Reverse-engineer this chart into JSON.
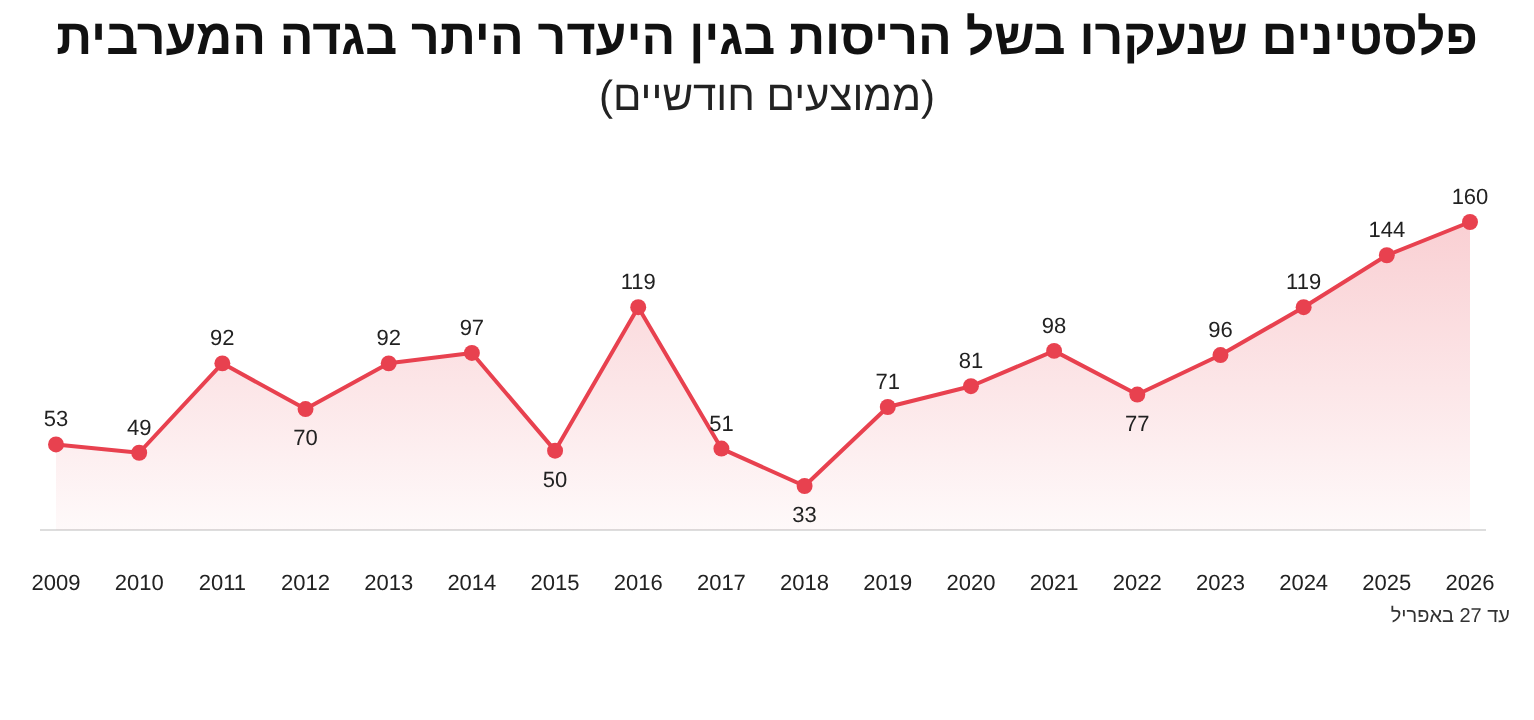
{
  "chart_data": {
    "type": "area",
    "title": "פלסטינים שנעקרו בשל הריסות בגין היעדר היתר בגדה המערבית",
    "subtitle": "(ממוצעים חודשיים)",
    "categories": [
      "2009",
      "2010",
      "2011",
      "2012",
      "2013",
      "2014",
      "2015",
      "2016",
      "2017",
      "2018",
      "2019",
      "2020",
      "2021",
      "2022",
      "2023",
      "2024",
      "2025",
      "2026"
    ],
    "series": [
      {
        "color": "#e8414f",
        "values": [
          53,
          49,
          92,
          70,
          92,
          97,
          50,
          119,
          51,
          33,
          71,
          81,
          98,
          77,
          96,
          119,
          144,
          160
        ]
      }
    ],
    "relative": false,
    "data_labels": true,
    "marker": "circle",
    "grid": false,
    "annotations": [
      "עד 27 באפריל"
    ]
  }
}
